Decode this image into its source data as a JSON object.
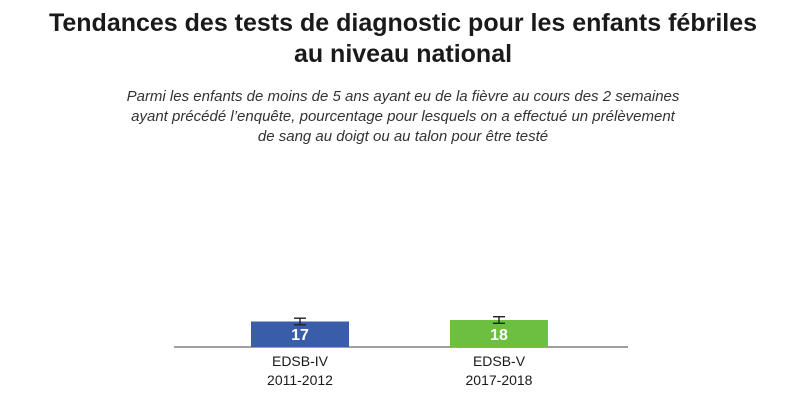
{
  "title_line1": "Tendances des tests de diagnostic pour les enfants fébriles",
  "title_line2": "au niveau national",
  "subtitle_line1": "Parmi les enfants de moins de 5 ans ayant eu de la fièvre au cours des 2 semaines",
  "subtitle_line2": "ayant précédé l’enquête, pourcentage pour lesquels on a effectué un prélèvement",
  "subtitle_line3": "de sang au doigt ou au talon pour être testé",
  "chart_data": {
    "type": "bar",
    "categories": [
      [
        "EDSB-IV",
        "2011-2012"
      ],
      [
        "EDSB-V",
        "2017-2018"
      ]
    ],
    "values": [
      17,
      18
    ],
    "error_bars": true,
    "colors": [
      "#3a5daa",
      "#6cbf3f"
    ],
    "ylim": [
      0,
      100
    ],
    "grid": false,
    "legend": "none"
  }
}
